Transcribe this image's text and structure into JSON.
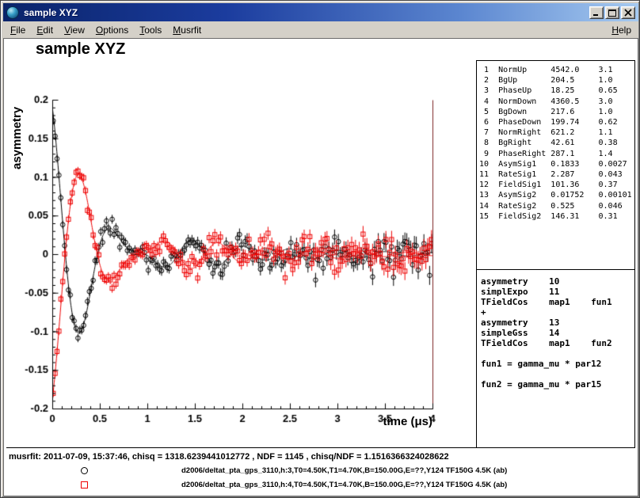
{
  "window": {
    "title": "sample XYZ"
  },
  "window_controls": [
    "minimize",
    "maximize",
    "close"
  ],
  "menu": {
    "items": [
      "File",
      "Edit",
      "View",
      "Options",
      "Tools",
      "Musrfit"
    ],
    "right_items": [
      "Help"
    ]
  },
  "plot": {
    "title": "sample XYZ",
    "ylabel": "asymmetry",
    "xlabel": "time (μs)"
  },
  "parameters": {
    "rows": [
      {
        "no": 1,
        "name": "NormUp",
        "value": "4542.0",
        "error": "3.1"
      },
      {
        "no": 2,
        "name": "BgUp",
        "value": "204.5",
        "error": "1.0"
      },
      {
        "no": 3,
        "name": "PhaseUp",
        "value": "18.25",
        "error": "0.65"
      },
      {
        "no": 4,
        "name": "NormDown",
        "value": "4360.5",
        "error": "3.0"
      },
      {
        "no": 5,
        "name": "BgDown",
        "value": "217.6",
        "error": "1.0"
      },
      {
        "no": 6,
        "name": "PhaseDown",
        "value": "199.74",
        "error": "0.62"
      },
      {
        "no": 7,
        "name": "NormRight",
        "value": "621.2",
        "error": "1.1"
      },
      {
        "no": 8,
        "name": "BgRight",
        "value": "42.61",
        "error": "0.38"
      },
      {
        "no": 9,
        "name": "PhaseRight",
        "value": "287.1",
        "error": "1.4"
      },
      {
        "no": 10,
        "name": "AsymSig1",
        "value": "0.1833",
        "error": "0.0027"
      },
      {
        "no": 11,
        "name": "RateSig1",
        "value": "2.287",
        "error": "0.043"
      },
      {
        "no": 12,
        "name": "FieldSig1",
        "value": "101.36",
        "error": "0.37"
      },
      {
        "no": 13,
        "name": "AsymSig2",
        "value": "0.01752",
        "error": "0.00101"
      },
      {
        "no": 14,
        "name": "RateSig2",
        "value": "0.525",
        "error": "0.046"
      },
      {
        "no": 15,
        "name": "FieldSig2",
        "value": "146.31",
        "error": "0.31"
      }
    ]
  },
  "theory_lines": [
    "asymmetry    10",
    "simplExpo    11",
    "TFieldCos    map1    fun1",
    "+",
    "asymmetry    13",
    "simpleGss    14",
    "TFieldCos    map1    fun2",
    "",
    "fun1 = gamma_mu * par12",
    "",
    "fun2 = gamma_mu * par15"
  ],
  "status_line": "musrfit: 2011-07-09, 15:37:46, chisq = 1318.6239441012772 , NDF = 1145 , chisq/NDF = 1.1516366324028622",
  "legend": [
    {
      "marker": "circle",
      "color": "#000000",
      "label": "d2006/deltat_pta_gps_3110,h:3,T0=4.50K,T1=4.70K,B=150.00G,E=??,Y124 TF150G 4.5K (ab)"
    },
    {
      "marker": "square",
      "color": "#ee0000",
      "label": "d2006/deltat_pta_gps_3110,h:4,T0=4.50K,T1=4.70K,B=150.00G,E=??,Y124 TF150G 4.5K (ab)"
    }
  ],
  "chart_data": {
    "type": "scatter",
    "title": "sample XYZ",
    "xlabel": "time (μs)",
    "ylabel": "asymmetry",
    "xlim": [
      0,
      4
    ],
    "ylim": [
      -0.2,
      0.2
    ],
    "xticks": [
      0,
      0.5,
      1,
      1.5,
      2,
      2.5,
      3,
      3.5,
      4
    ],
    "yticks": [
      -0.2,
      -0.15,
      -0.1,
      -0.05,
      0,
      0.05,
      0.1,
      0.15,
      0.2
    ],
    "x_minor_step": 0.1,
    "y_minor_step": 0.01,
    "grid": false,
    "frame_color": "#000000",
    "right_frame_color": "#7a2020",
    "series": [
      {
        "name": "d2006/deltat_pta_gps_3110,h:3,T0=4.50K,T1=4.70K,B=150.00G,E=??,Y124 TF150G 4.5K (ab)",
        "marker": "circle",
        "color": "#000000",
        "model": {
          "A1": 0.1833,
          "lambda1": 2.287,
          "freq1_MHz": 1.374,
          "A2": 0.01752,
          "sigma2": 0.525,
          "freq2_MHz": 1.983,
          "phase_deg": 18.25
        },
        "n_points": 200,
        "t_max": 4,
        "err0": 0.005,
        "err_growth_tau": 4.4,
        "noise_seed": 20110709
      },
      {
        "name": "d2006/deltat_pta_gps_3110,h:4,T0=4.50K,T1=4.70K,B=150.00G,E=??,Y124 TF150G 4.5K (ab)",
        "marker": "square",
        "color": "#ee0000",
        "model": {
          "A1": 0.1833,
          "lambda1": 2.287,
          "freq1_MHz": 1.374,
          "A2": 0.01752,
          "sigma2": 0.525,
          "freq2_MHz": 1.983,
          "phase_deg": 199.74
        },
        "n_points": 200,
        "t_max": 4,
        "err0": 0.005,
        "err_growth_tau": 4.4,
        "noise_seed": 19450815
      }
    ]
  }
}
